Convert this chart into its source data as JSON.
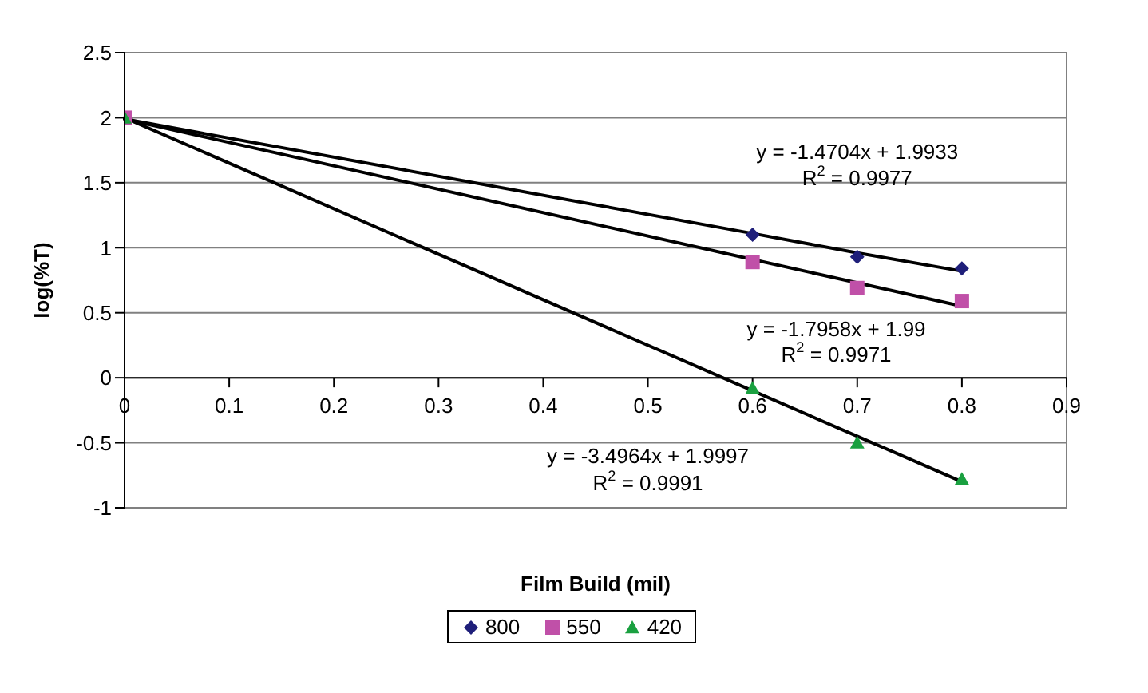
{
  "chart_data": {
    "type": "scatter",
    "xlabel": "Film Build (mil)",
    "ylabel": "log(%T)",
    "xlim": [
      0,
      0.9
    ],
    "xticks": [
      0,
      0.1,
      0.2,
      0.3,
      0.4,
      0.5,
      0.6,
      0.7,
      0.8,
      0.9
    ],
    "ylim": [
      -1,
      2.5
    ],
    "yticks": [
      -1,
      -0.5,
      0,
      0.5,
      1,
      1.5,
      2,
      2.5
    ],
    "grid": "y",
    "legend": "bottom",
    "x": [
      0,
      0.6,
      0.7,
      0.8
    ],
    "series": [
      {
        "name": "800",
        "color": "#1f1f7a",
        "marker": "diamond",
        "values": [
          null,
          1.1,
          0.93,
          0.84
        ]
      },
      {
        "name": "550",
        "color": "#c050a8",
        "marker": "square",
        "values": [
          2,
          0.89,
          0.69,
          0.59
        ]
      },
      {
        "name": "420",
        "color": "#1aa040",
        "marker": "triangle",
        "values": [
          2,
          -0.08,
          -0.5,
          -0.78
        ]
      },
      {
        "type": "line",
        "color": "#000000",
        "marker": "none",
        "values": [
          1.99,
          1.11,
          0.96,
          0.82
        ]
      },
      {
        "type": "line",
        "color": "#000000",
        "marker": "none",
        "values": [
          1.99,
          0.91,
          0.73,
          0.55
        ]
      },
      {
        "type": "line",
        "color": "#000000",
        "marker": "none",
        "values": [
          2,
          -0.1,
          -0.45,
          -0.8
        ]
      }
    ],
    "annotations": [
      "y = -1.4704x + 1.9933",
      "R$^{2}$ = 0.9977",
      "y = -1.7958x + 1.99",
      "R$^{2}$ = 0.9971",
      "y = -3.4964x + 1.9997",
      "R$^{2}$ = 0.9991"
    ]
  }
}
